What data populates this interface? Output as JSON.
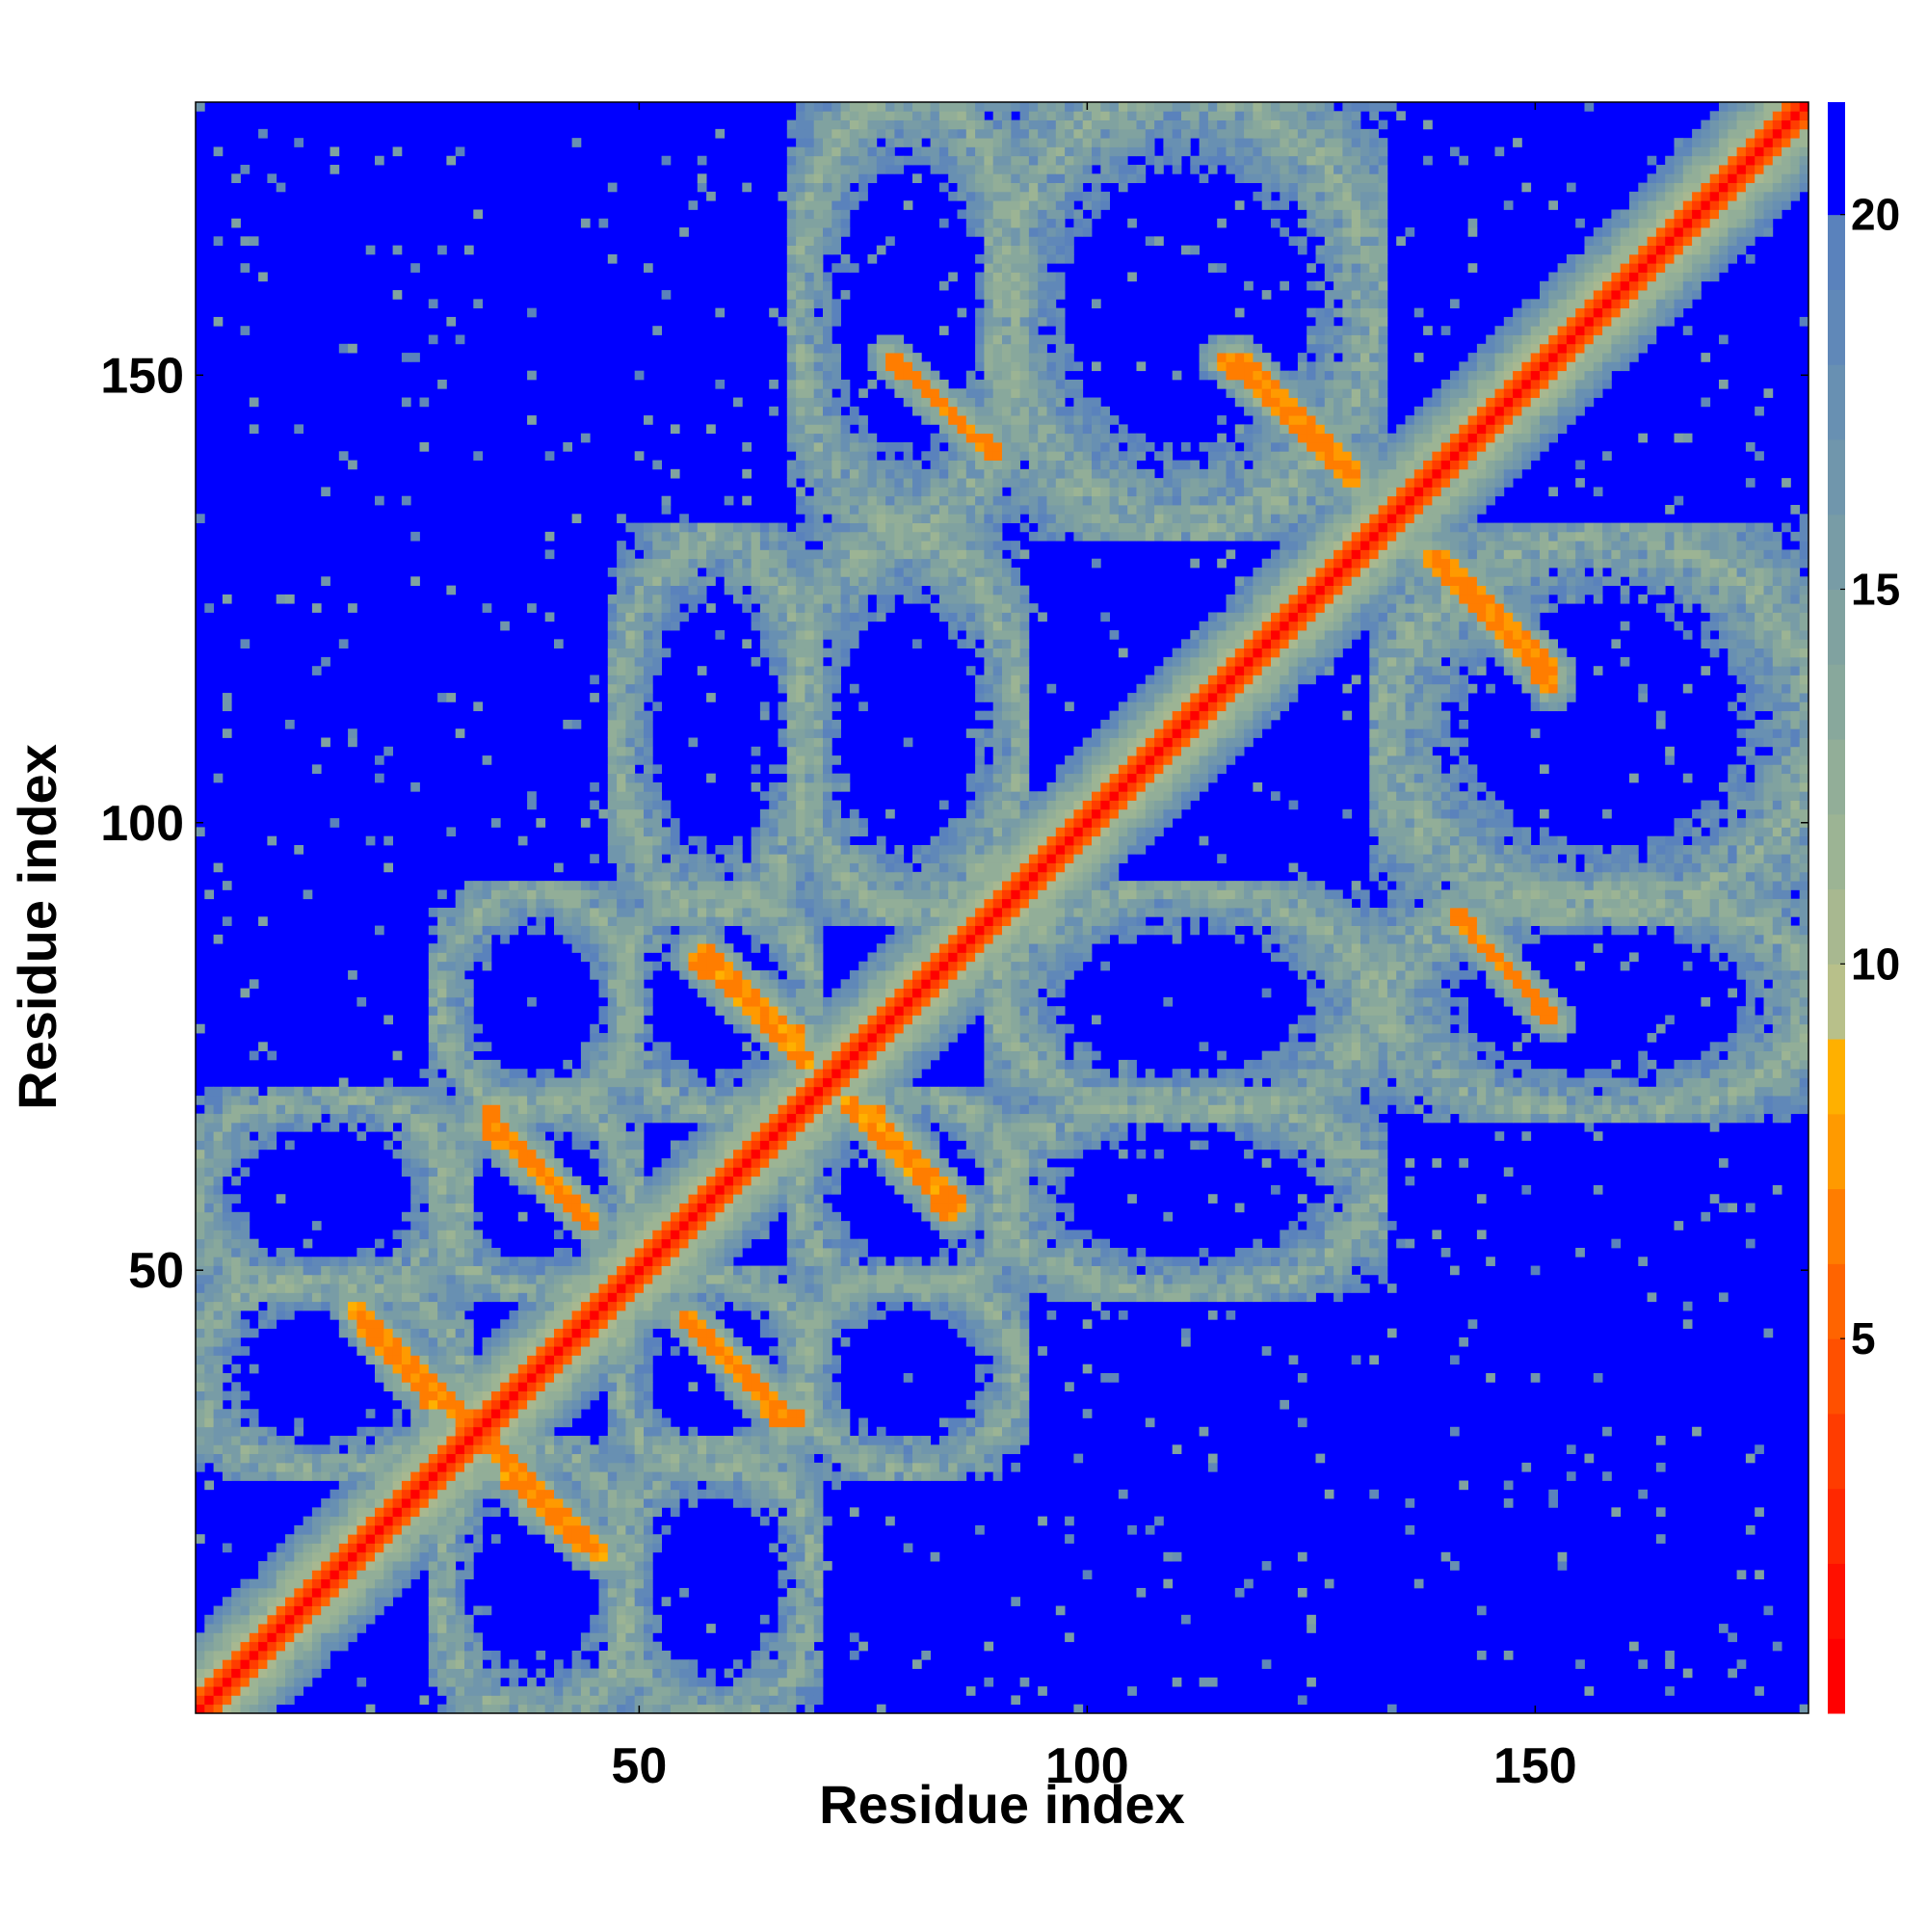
{
  "chart_data": {
    "type": "heatmap",
    "title": "",
    "xlabel": "Residue index",
    "ylabel": "Residue index",
    "n_residues": 180,
    "xlim": [
      1,
      180
    ],
    "ylim": [
      1,
      180
    ],
    "x_ticks": [
      50,
      100,
      150
    ],
    "y_ticks": [
      50,
      100,
      150
    ],
    "x_tick_labels": [
      "50",
      "100",
      "150"
    ],
    "y_tick_labels": [
      "50",
      "100",
      "150"
    ],
    "colorbar": {
      "range": [
        0,
        21.5
      ],
      "ticks": [
        5,
        10,
        15,
        20
      ],
      "tick_labels": [
        "5",
        "10",
        "15",
        "20"
      ],
      "levels": [
        {
          "min": 0,
          "max": 1,
          "color": "#ff0000"
        },
        {
          "min": 1,
          "max": 2,
          "color": "#ff1000"
        },
        {
          "min": 2,
          "max": 3,
          "color": "#ff2800"
        },
        {
          "min": 3,
          "max": 4,
          "color": "#ff3c00"
        },
        {
          "min": 4,
          "max": 5,
          "color": "#ff5000"
        },
        {
          "min": 5,
          "max": 6,
          "color": "#ff6400"
        },
        {
          "min": 6,
          "max": 7,
          "color": "#ff7d00"
        },
        {
          "min": 7,
          "max": 8,
          "color": "#ff9a00"
        },
        {
          "min": 8,
          "max": 9,
          "color": "#ffb000"
        },
        {
          "min": 9,
          "max": 10,
          "color": "#b8c08a"
        },
        {
          "min": 10,
          "max": 11,
          "color": "#a8b890"
        },
        {
          "min": 11,
          "max": 12,
          "color": "#9cb494"
        },
        {
          "min": 12,
          "max": 13,
          "color": "#92ae98"
        },
        {
          "min": 13,
          "max": 14,
          "color": "#88a89c"
        },
        {
          "min": 14,
          "max": 15,
          "color": "#80a2a0"
        },
        {
          "min": 15,
          "max": 16,
          "color": "#789ca6"
        },
        {
          "min": 16,
          "max": 17,
          "color": "#7096ac"
        },
        {
          "min": 17,
          "max": 18,
          "color": "#6890b2"
        },
        {
          "min": 18,
          "max": 19,
          "color": "#6088b8"
        },
        {
          "min": 19,
          "max": 20,
          "color": "#5a82bc"
        },
        {
          "min": 20,
          "max": 21.5,
          "color": "#0000ff"
        }
      ]
    },
    "structure": {
      "diagonal_width": 1,
      "helices": [
        {
          "start": 2,
          "end": 28
        },
        {
          "start": 30,
          "end": 47
        },
        {
          "start": 50,
          "end": 67
        },
        {
          "start": 70,
          "end": 90
        },
        {
          "start": 92,
          "end": 130
        },
        {
          "start": 135,
          "end": 180
        }
      ],
      "antiparallel_contacts": [
        {
          "i1": 18,
          "j1": 46,
          "i2": 33,
          "j2": 31
        },
        {
          "i1": 33,
          "j1": 68,
          "i2": 43,
          "j2": 57
        },
        {
          "i1": 56,
          "j1": 85,
          "i2": 69,
          "j2": 73
        },
        {
          "i1": 76,
          "j1": 68,
          "i2": 86,
          "j2": 57
        },
        {
          "i1": 55,
          "j1": 45,
          "i2": 66,
          "j2": 33
        },
        {
          "i1": 35,
          "j1": 27,
          "i2": 44,
          "j2": 19
        },
        {
          "i1": 78,
          "j1": 152,
          "i2": 90,
          "j2": 141
        },
        {
          "i1": 115,
          "j1": 152,
          "i2": 130,
          "j2": 138
        },
        {
          "i1": 139,
          "j1": 130,
          "i2": 152,
          "j2": 117
        },
        {
          "i1": 141,
          "j1": 90,
          "i2": 152,
          "j2": 78
        }
      ]
    }
  }
}
